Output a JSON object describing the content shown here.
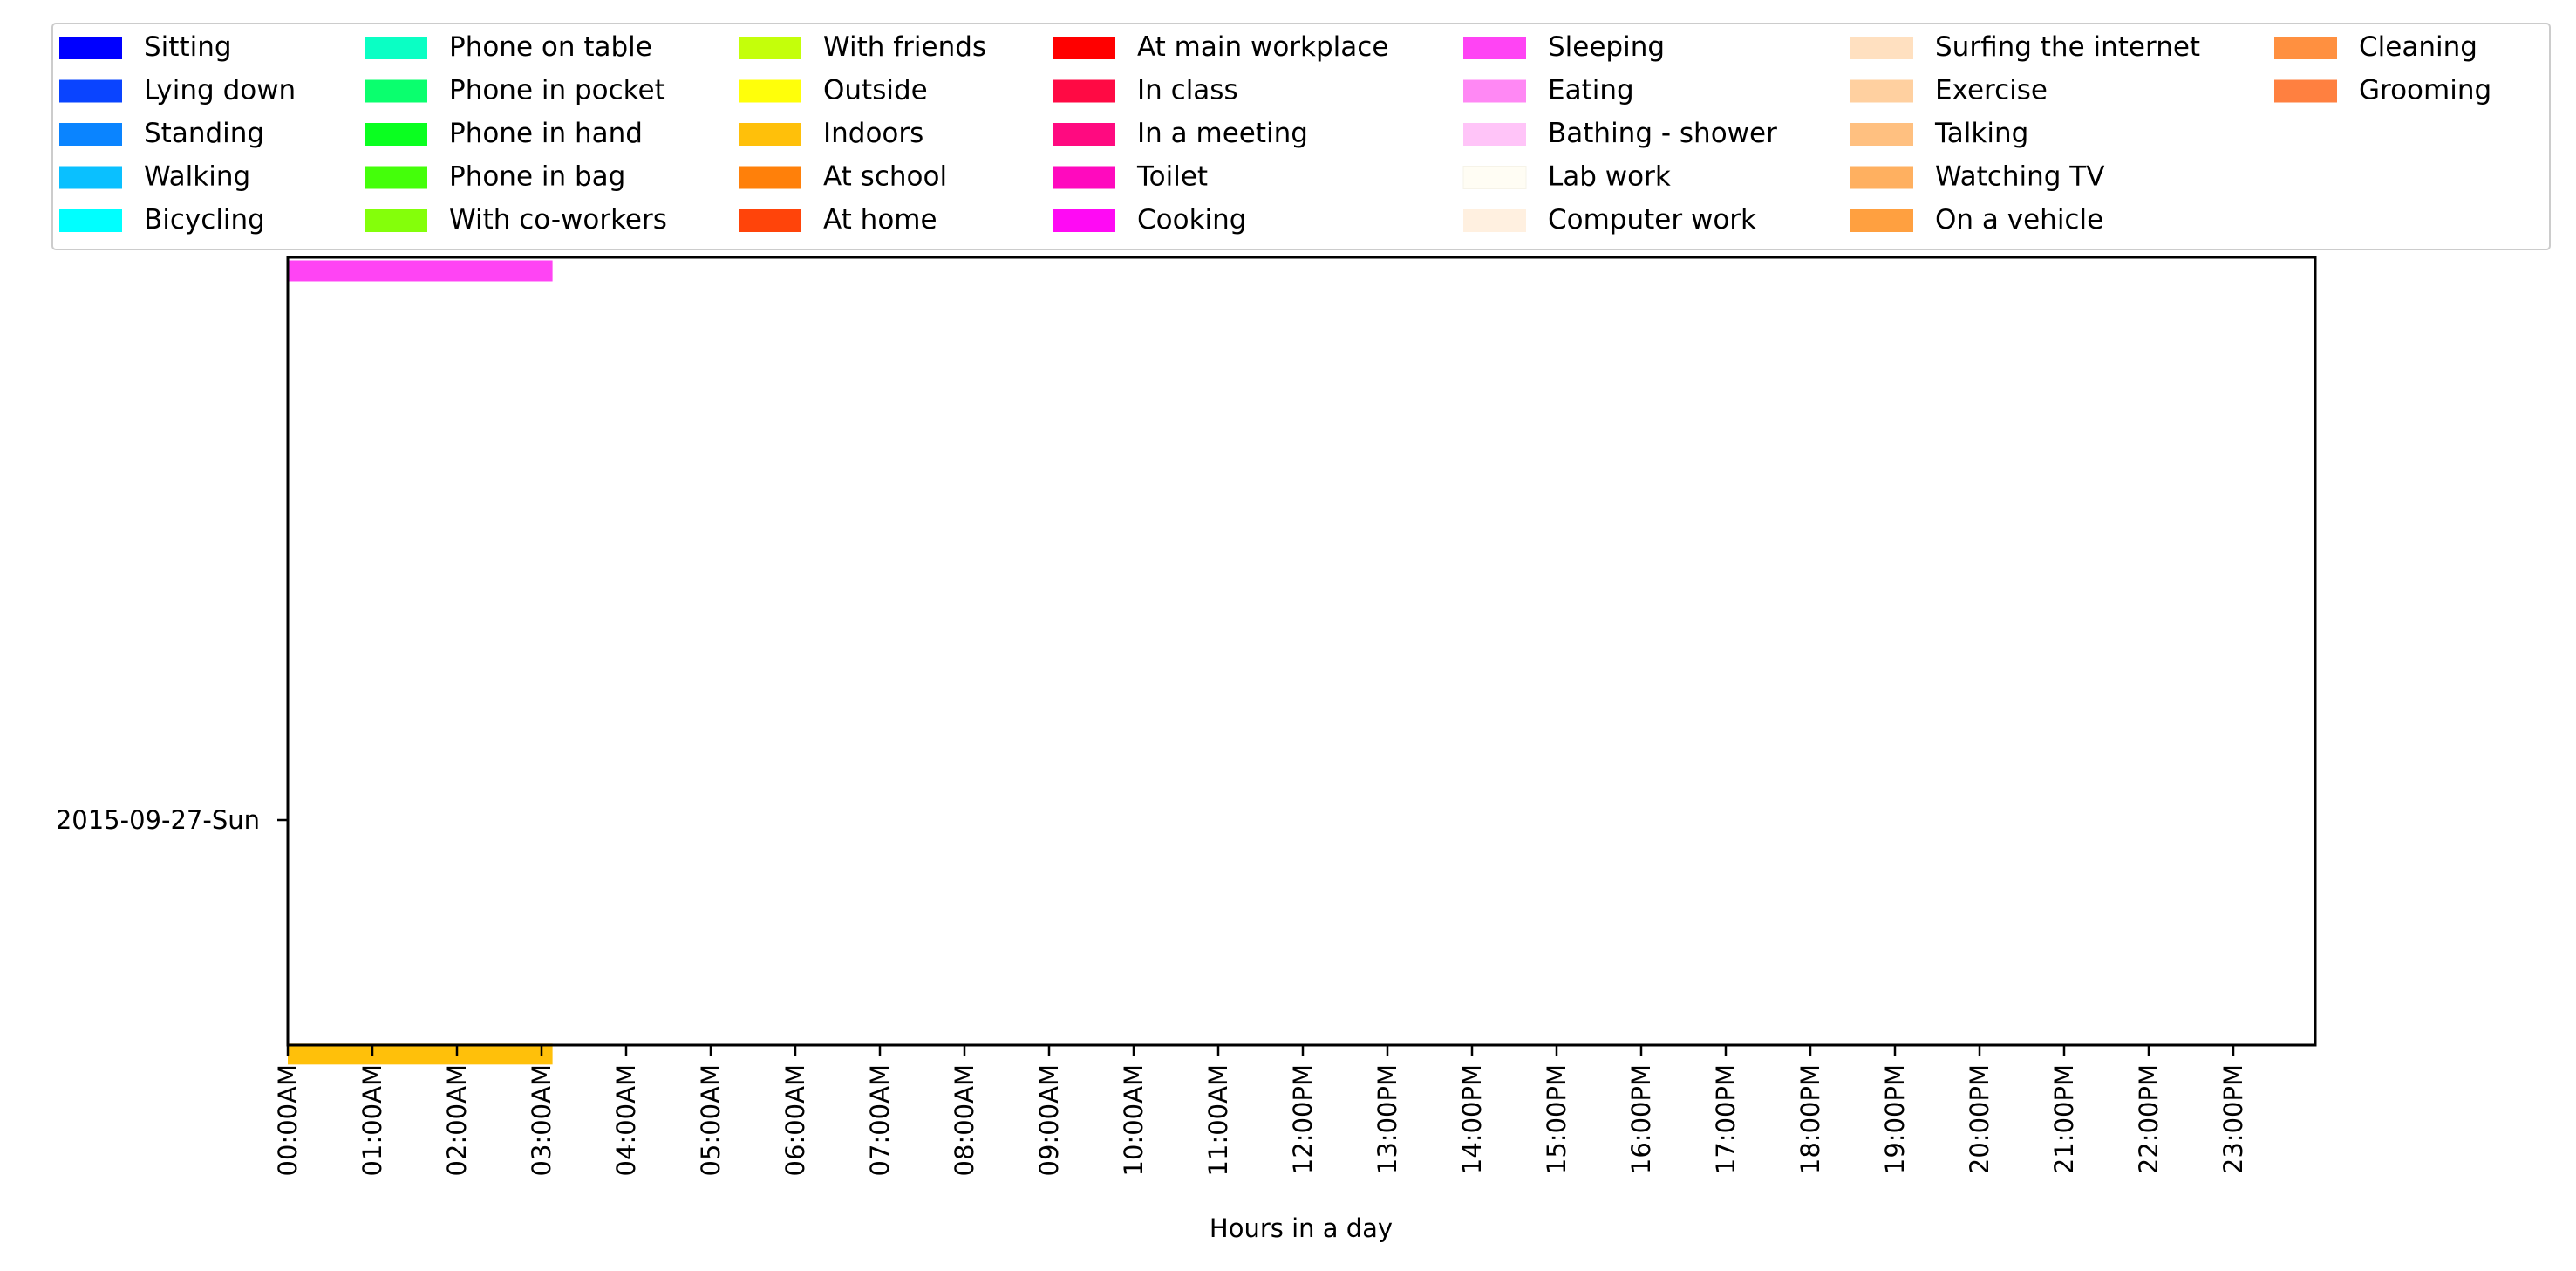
{
  "chart_data": {
    "type": "bar",
    "orientation": "horizontal",
    "title": "",
    "xlabel": "Hours in a day",
    "ylabel": "",
    "xlim": [
      0,
      24
    ],
    "x_ticks": [
      "00:00AM",
      "01:00AM",
      "02:00AM",
      "03:00AM",
      "04:00AM",
      "05:00AM",
      "06:00AM",
      "07:00AM",
      "08:00AM",
      "09:00AM",
      "10:00AM",
      "11:00AM",
      "12:00PM",
      "13:00PM",
      "14:00PM",
      "15:00PM",
      "16:00PM",
      "17:00PM",
      "18:00PM",
      "19:00PM",
      "20:00PM",
      "21:00PM",
      "22:00PM",
      "23:00PM"
    ],
    "y_ticks": [
      "2015-09-27-Sun"
    ],
    "grid": false,
    "legend_position": "top",
    "legend": [
      {
        "label": "Sitting",
        "color": "#0000ff"
      },
      {
        "label": "Lying down",
        "color": "#0a44ff"
      },
      {
        "label": "Standing",
        "color": "#0a84ff"
      },
      {
        "label": "Walking",
        "color": "#0ac0ff"
      },
      {
        "label": "Bicycling",
        "color": "#00ffff"
      },
      {
        "label": "Phone on table",
        "color": "#0affc4"
      },
      {
        "label": "Phone in pocket",
        "color": "#0aff6e"
      },
      {
        "label": "Phone in hand",
        "color": "#0aff20"
      },
      {
        "label": "Phone in bag",
        "color": "#44ff0a"
      },
      {
        "label": "With co-workers",
        "color": "#84ff0a"
      },
      {
        "label": "With friends",
        "color": "#c4ff0a"
      },
      {
        "label": "Outside",
        "color": "#ffff0a"
      },
      {
        "label": "Indoors",
        "color": "#ffc00a"
      },
      {
        "label": "At school",
        "color": "#ff800a"
      },
      {
        "label": "At home",
        "color": "#ff440a"
      },
      {
        "label": "At main workplace",
        "color": "#ff0000"
      },
      {
        "label": "In class",
        "color": "#ff0a44"
      },
      {
        "label": "In a meeting",
        "color": "#ff0a80"
      },
      {
        "label": "Toilet",
        "color": "#ff0abe"
      },
      {
        "label": "Cooking",
        "color": "#ff0af4"
      },
      {
        "label": "Sleeping",
        "color": "#ff44f4"
      },
      {
        "label": "Eating",
        "color": "#ff88f4"
      },
      {
        "label": "Bathing - shower",
        "color": "#ffc4f8"
      },
      {
        "label": "Lab work",
        "color": "#fffdf4"
      },
      {
        "label": "Computer work",
        "color": "#fff0e0"
      },
      {
        "label": "Surfing the internet",
        "color": "#ffe0c0"
      },
      {
        "label": "Exercise",
        "color": "#ffd0a0"
      },
      {
        "label": "Talking",
        "color": "#ffc080"
      },
      {
        "label": "Watching TV",
        "color": "#ffb060"
      },
      {
        "label": "On a vehicle",
        "color": "#ffa040"
      },
      {
        "label": "Cleaning",
        "color": "#ff9040"
      },
      {
        "label": "Grooming",
        "color": "#ff8040"
      }
    ],
    "series": [
      {
        "activity": "Sleeping",
        "start": 0,
        "end": 3.13,
        "color": "#ff44f4",
        "lane": 1.22
      },
      {
        "activity": "Indoors",
        "start": 0,
        "end": 3.13,
        "color": "#ffc00a",
        "lane": -0.52
      }
    ]
  }
}
